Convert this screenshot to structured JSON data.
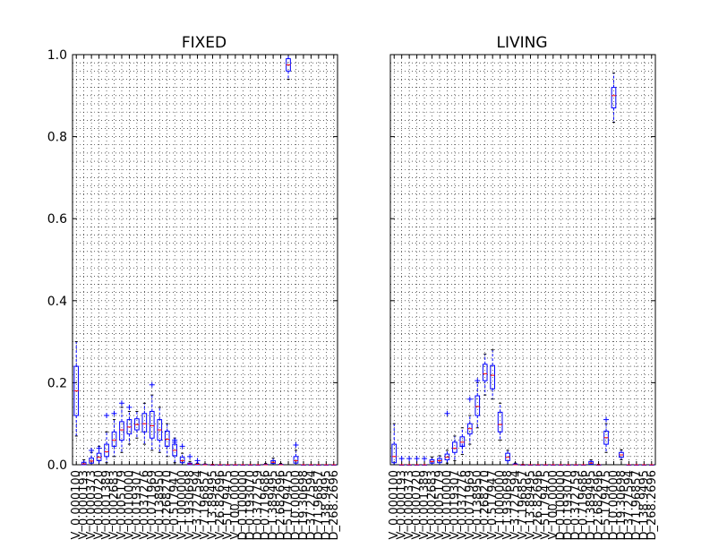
{
  "chart_data": [
    {
      "type": "boxplot",
      "title": "FIXED",
      "ylim": [
        0,
        1.0
      ],
      "yticks": [
        "0.0",
        "0.2",
        "0.4",
        "0.6",
        "0.8",
        "1.0"
      ],
      "grid": true,
      "categories": [
        "V_0.000100",
        "V_0.000193",
        "V_0.000373",
        "V_0.000720",
        "V_0.001389",
        "V_0.002683",
        "V_0.005179",
        "V_0.010000",
        "V_0.019307",
        "V_0.037276",
        "V_0.071969",
        "V_0.138950",
        "V_0.268270",
        "V_0.517947",
        "V_1.000000",
        "V_1.930698",
        "V_3.727594",
        "V_7.196857",
        "V_13.89495",
        "V_26.82696",
        "V_51.79475",
        "V_100.0000",
        "D_0.100000",
        "D_0.193070",
        "D_0.372759",
        "D_0.719686",
        "D_1.389495",
        "D_2.682696",
        "D_5.179475",
        "D_10.00000",
        "D_19.30698",
        "D_37.27594",
        "D_71.96857",
        "D_138.9495",
        "D_268.2696"
      ],
      "boxes": [
        {
          "q1": 0.12,
          "median": 0.18,
          "q3": 0.24,
          "wlo": 0.07,
          "whi": 0.3,
          "fliers": []
        },
        {
          "q1": 0.0,
          "median": 0.002,
          "q3": 0.006,
          "wlo": 0.0,
          "whi": 0.012,
          "fliers": []
        },
        {
          "q1": 0.004,
          "median": 0.009,
          "q3": 0.016,
          "wlo": 0.0,
          "whi": 0.03,
          "fliers": [
            0.035
          ]
        },
        {
          "q1": 0.01,
          "median": 0.018,
          "q3": 0.028,
          "wlo": 0.0,
          "whi": 0.045,
          "fliers": [
            0.04
          ]
        },
        {
          "q1": 0.02,
          "median": 0.032,
          "q3": 0.05,
          "wlo": 0.005,
          "whi": 0.08,
          "fliers": [
            0.12
          ]
        },
        {
          "q1": 0.045,
          "median": 0.06,
          "q3": 0.08,
          "wlo": 0.02,
          "whi": 0.11,
          "fliers": [
            0.125
          ]
        },
        {
          "q1": 0.06,
          "median": 0.085,
          "q3": 0.105,
          "wlo": 0.03,
          "whi": 0.14,
          "fliers": [
            0.15
          ]
        },
        {
          "q1": 0.075,
          "median": 0.092,
          "q3": 0.11,
          "wlo": 0.05,
          "whi": 0.13,
          "fliers": [
            0.14
          ]
        },
        {
          "q1": 0.085,
          "median": 0.098,
          "q3": 0.112,
          "wlo": 0.065,
          "whi": 0.13,
          "fliers": []
        },
        {
          "q1": 0.08,
          "median": 0.1,
          "q3": 0.125,
          "wlo": 0.05,
          "whi": 0.15,
          "fliers": []
        },
        {
          "q1": 0.065,
          "median": 0.095,
          "q3": 0.13,
          "wlo": 0.035,
          "whi": 0.17,
          "fliers": [
            0.195
          ]
        },
        {
          "q1": 0.06,
          "median": 0.085,
          "q3": 0.11,
          "wlo": 0.03,
          "whi": 0.14,
          "fliers": []
        },
        {
          "q1": 0.045,
          "median": 0.062,
          "q3": 0.082,
          "wlo": 0.02,
          "whi": 0.1,
          "fliers": []
        },
        {
          "q1": 0.022,
          "median": 0.035,
          "q3": 0.05,
          "wlo": 0.005,
          "whi": 0.065,
          "fliers": [
            0.06,
            0.055
          ]
        },
        {
          "q1": 0.005,
          "median": 0.01,
          "q3": 0.018,
          "wlo": 0.0,
          "whi": 0.028,
          "fliers": [
            0.045
          ]
        },
        {
          "q1": 0.0,
          "median": 0.002,
          "q3": 0.004,
          "wlo": 0.0,
          "whi": 0.008,
          "fliers": [
            0.02
          ]
        },
        {
          "q1": 0.0,
          "median": 0.001,
          "q3": 0.002,
          "wlo": 0.0,
          "whi": 0.004,
          "fliers": [
            0.01
          ]
        },
        {
          "q1": 0.0,
          "median": 0.0,
          "q3": 0.001,
          "wlo": 0.0,
          "whi": 0.002,
          "fliers": []
        },
        {
          "q1": 0.0,
          "median": 0.0,
          "q3": 0.0,
          "wlo": 0.0,
          "whi": 0.001,
          "fliers": []
        },
        {
          "q1": 0.0,
          "median": 0.0,
          "q3": 0.0,
          "wlo": 0.0,
          "whi": 0.0,
          "fliers": []
        },
        {
          "q1": 0.0,
          "median": 0.0,
          "q3": 0.0,
          "wlo": 0.0,
          "whi": 0.0,
          "fliers": []
        },
        {
          "q1": 0.0,
          "median": 0.0,
          "q3": 0.0,
          "wlo": 0.0,
          "whi": 0.0,
          "fliers": []
        },
        {
          "q1": 0.0,
          "median": 0.0,
          "q3": 0.0,
          "wlo": 0.0,
          "whi": 0.0,
          "fliers": []
        },
        {
          "q1": 0.0,
          "median": 0.0,
          "q3": 0.0,
          "wlo": 0.0,
          "whi": 0.0,
          "fliers": []
        },
        {
          "q1": 0.0,
          "median": 0.0,
          "q3": 0.0,
          "wlo": 0.0,
          "whi": 0.0,
          "fliers": []
        },
        {
          "q1": 0.0,
          "median": 0.0,
          "q3": 0.001,
          "wlo": 0.0,
          "whi": 0.003,
          "fliers": []
        },
        {
          "q1": 0.003,
          "median": 0.006,
          "q3": 0.01,
          "wlo": 0.0,
          "whi": 0.016,
          "fliers": []
        },
        {
          "q1": 0.0,
          "median": 0.0,
          "q3": 0.001,
          "wlo": 0.0,
          "whi": 0.003,
          "fliers": []
        },
        {
          "q1": 0.96,
          "median": 0.975,
          "q3": 0.99,
          "wlo": 0.94,
          "whi": 1.0,
          "fliers": []
        },
        {
          "q1": 0.004,
          "median": 0.01,
          "q3": 0.02,
          "wlo": 0.0,
          "whi": 0.035,
          "fliers": [
            0.048
          ]
        },
        {
          "q1": 0.0,
          "median": 0.0,
          "q3": 0.0,
          "wlo": 0.0,
          "whi": 0.0,
          "fliers": []
        },
        {
          "q1": 0.0,
          "median": 0.0,
          "q3": 0.0,
          "wlo": 0.0,
          "whi": 0.0,
          "fliers": []
        },
        {
          "q1": 0.0,
          "median": 0.0,
          "q3": 0.0,
          "wlo": 0.0,
          "whi": 0.0,
          "fliers": []
        },
        {
          "q1": 0.0,
          "median": 0.0,
          "q3": 0.0,
          "wlo": 0.0,
          "whi": 0.0,
          "fliers": []
        },
        {
          "q1": 0.0,
          "median": 0.0,
          "q3": 0.0,
          "wlo": 0.0,
          "whi": 0.0,
          "fliers": []
        }
      ]
    },
    {
      "type": "boxplot",
      "title": "LIVING",
      "ylim": [
        0,
        1.0
      ],
      "grid": true,
      "categories": [
        "V_0.000100",
        "V_0.000193",
        "V_0.000373",
        "V_0.000720",
        "V_0.001389",
        "V_0.002683",
        "V_0.005179",
        "V_0.010000",
        "V_0.019307",
        "V_0.037276",
        "V_0.071969",
        "V_0.138950",
        "V_0.268270",
        "V_0.517947",
        "V_1.000000",
        "V_1.930698",
        "V_3.727594",
        "V_7.196857",
        "V_13.89495",
        "V_26.82696",
        "V_51.79475",
        "V_100.0000",
        "D_0.100000",
        "D_0.193070",
        "D_0.372759",
        "D_0.719686",
        "D_1.389495",
        "D_2.682696",
        "D_5.179475",
        "D_10.00000",
        "D_19.30698",
        "D_37.27594",
        "D_71.96857",
        "D_138.9495",
        "D_268.2696"
      ],
      "boxes": [
        {
          "q1": 0.005,
          "median": 0.02,
          "q3": 0.05,
          "wlo": 0.0,
          "whi": 0.1,
          "fliers": []
        },
        {
          "q1": 0.0,
          "median": 0.0,
          "q3": 0.0,
          "wlo": 0.0,
          "whi": 0.0,
          "fliers": [
            0.015
          ]
        },
        {
          "q1": 0.0,
          "median": 0.0,
          "q3": 0.0,
          "wlo": 0.0,
          "whi": 0.0,
          "fliers": [
            0.015
          ]
        },
        {
          "q1": 0.0,
          "median": 0.0,
          "q3": 0.0,
          "wlo": 0.0,
          "whi": 0.0,
          "fliers": [
            0.015
          ]
        },
        {
          "q1": 0.0,
          "median": 0.0,
          "q3": 0.0,
          "wlo": 0.0,
          "whi": 0.0,
          "fliers": [
            0.015
          ]
        },
        {
          "q1": 0.004,
          "median": 0.008,
          "q3": 0.012,
          "wlo": 0.0,
          "whi": 0.018,
          "fliers": []
        },
        {
          "q1": 0.005,
          "median": 0.01,
          "q3": 0.015,
          "wlo": 0.0,
          "whi": 0.022,
          "fliers": []
        },
        {
          "q1": 0.012,
          "median": 0.018,
          "q3": 0.026,
          "wlo": 0.004,
          "whi": 0.035,
          "fliers": [
            0.125
          ]
        },
        {
          "q1": 0.03,
          "median": 0.04,
          "q3": 0.055,
          "wlo": 0.01,
          "whi": 0.07,
          "fliers": []
        },
        {
          "q1": 0.045,
          "median": 0.055,
          "q3": 0.068,
          "wlo": 0.025,
          "whi": 0.09,
          "fliers": [
            0.045
          ]
        },
        {
          "q1": 0.075,
          "median": 0.088,
          "q3": 0.1,
          "wlo": 0.05,
          "whi": 0.12,
          "fliers": [
            0.16
          ]
        },
        {
          "q1": 0.12,
          "median": 0.142,
          "q3": 0.168,
          "wlo": 0.09,
          "whi": 0.2,
          "fliers": [
            0.205
          ]
        },
        {
          "q1": 0.205,
          "median": 0.222,
          "q3": 0.245,
          "wlo": 0.17,
          "whi": 0.27,
          "fliers": []
        },
        {
          "q1": 0.185,
          "median": 0.218,
          "q3": 0.242,
          "wlo": 0.16,
          "whi": 0.28,
          "fliers": []
        },
        {
          "q1": 0.08,
          "median": 0.098,
          "q3": 0.128,
          "wlo": 0.06,
          "whi": 0.15,
          "fliers": []
        },
        {
          "q1": 0.01,
          "median": 0.018,
          "q3": 0.028,
          "wlo": 0.0,
          "whi": 0.035,
          "fliers": []
        },
        {
          "q1": 0.0,
          "median": 0.0,
          "q3": 0.002,
          "wlo": 0.0,
          "whi": 0.004,
          "fliers": []
        },
        {
          "q1": 0.0,
          "median": 0.0,
          "q3": 0.0,
          "wlo": 0.0,
          "whi": 0.001,
          "fliers": []
        },
        {
          "q1": 0.0,
          "median": 0.0,
          "q3": 0.0,
          "wlo": 0.0,
          "whi": 0.0,
          "fliers": []
        },
        {
          "q1": 0.0,
          "median": 0.0,
          "q3": 0.0,
          "wlo": 0.0,
          "whi": 0.0,
          "fliers": []
        },
        {
          "q1": 0.0,
          "median": 0.0,
          "q3": 0.0,
          "wlo": 0.0,
          "whi": 0.0,
          "fliers": []
        },
        {
          "q1": 0.0,
          "median": 0.0,
          "q3": 0.0,
          "wlo": 0.0,
          "whi": 0.0,
          "fliers": []
        },
        {
          "q1": 0.0,
          "median": 0.0,
          "q3": 0.0,
          "wlo": 0.0,
          "whi": 0.0,
          "fliers": []
        },
        {
          "q1": 0.0,
          "median": 0.0,
          "q3": 0.0,
          "wlo": 0.0,
          "whi": 0.0,
          "fliers": []
        },
        {
          "q1": 0.0,
          "median": 0.0,
          "q3": 0.0,
          "wlo": 0.0,
          "whi": 0.0,
          "fliers": []
        },
        {
          "q1": 0.0,
          "median": 0.0,
          "q3": 0.0,
          "wlo": 0.0,
          "whi": 0.0,
          "fliers": []
        },
        {
          "q1": 0.001,
          "median": 0.004,
          "q3": 0.008,
          "wlo": 0.0,
          "whi": 0.012,
          "fliers": []
        },
        {
          "q1": 0.0,
          "median": 0.0,
          "q3": 0.0,
          "wlo": 0.0,
          "whi": 0.001,
          "fliers": []
        },
        {
          "q1": 0.05,
          "median": 0.066,
          "q3": 0.082,
          "wlo": 0.03,
          "whi": 0.1,
          "fliers": [
            0.11
          ]
        },
        {
          "q1": 0.87,
          "median": 0.9,
          "q3": 0.92,
          "wlo": 0.835,
          "whi": 0.955,
          "fliers": []
        },
        {
          "q1": 0.018,
          "median": 0.024,
          "q3": 0.03,
          "wlo": 0.012,
          "whi": 0.036,
          "fliers": []
        },
        {
          "q1": 0.0,
          "median": 0.0,
          "q3": 0.0,
          "wlo": 0.0,
          "whi": 0.0,
          "fliers": []
        },
        {
          "q1": 0.0,
          "median": 0.0,
          "q3": 0.0,
          "wlo": 0.0,
          "whi": 0.0,
          "fliers": []
        },
        {
          "q1": 0.0,
          "median": 0.0,
          "q3": 0.0,
          "wlo": 0.0,
          "whi": 0.0,
          "fliers": []
        },
        {
          "q1": 0.0,
          "median": 0.0,
          "q3": 0.0,
          "wlo": 0.0,
          "whi": 0.0,
          "fliers": []
        }
      ]
    }
  ],
  "style": {
    "box_color": "#0000ff",
    "median_color": "#ff0000",
    "grid_color": "#000000",
    "axis_color": "#000000"
  }
}
